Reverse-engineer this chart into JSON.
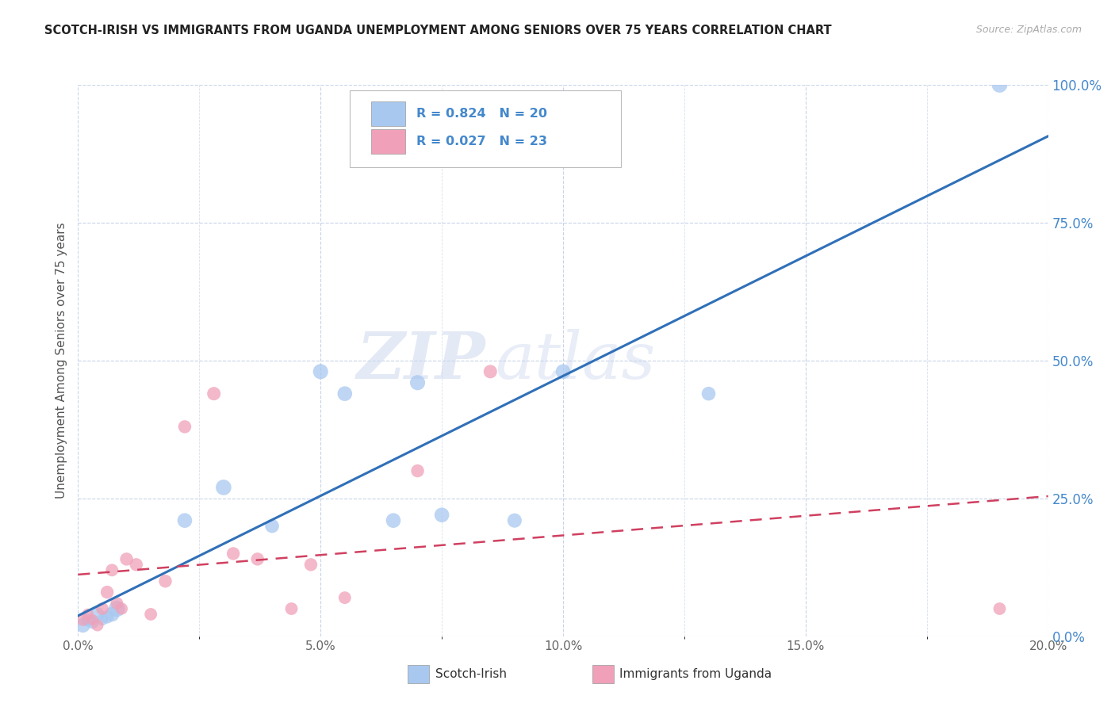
{
  "title": "SCOTCH-IRISH VS IMMIGRANTS FROM UGANDA UNEMPLOYMENT AMONG SENIORS OVER 75 YEARS CORRELATION CHART",
  "source": "Source: ZipAtlas.com",
  "ylabel": "Unemployment Among Seniors over 75 years",
  "xmin": 0.0,
  "xmax": 0.2,
  "ymin": 0.0,
  "ymax": 1.0,
  "xtick_labels": [
    "0.0%",
    "",
    "5.0%",
    "",
    "10.0%",
    "",
    "15.0%",
    "",
    "20.0%"
  ],
  "xtick_vals": [
    0.0,
    0.025,
    0.05,
    0.075,
    0.1,
    0.125,
    0.15,
    0.175,
    0.2
  ],
  "xtick_major_labels": [
    "0.0%",
    "5.0%",
    "10.0%",
    "15.0%",
    "20.0%"
  ],
  "xtick_major_vals": [
    0.0,
    0.05,
    0.1,
    0.15,
    0.2
  ],
  "ytick_labels": [
    "0.0%",
    "25.0%",
    "50.0%",
    "75.0%",
    "100.0%"
  ],
  "ytick_vals": [
    0.0,
    0.25,
    0.5,
    0.75,
    1.0
  ],
  "scotch_irish": {
    "label": "Scotch-Irish",
    "R": 0.824,
    "N": 20,
    "color": "#a8c8f0",
    "line_color": "#3070b8",
    "x": [
      0.001,
      0.002,
      0.003,
      0.004,
      0.005,
      0.006,
      0.007,
      0.008,
      0.022,
      0.03,
      0.04,
      0.05,
      0.055,
      0.065,
      0.07,
      0.075,
      0.09,
      0.1,
      0.13,
      0.19
    ],
    "y": [
      0.02,
      0.03,
      0.025,
      0.04,
      0.03,
      0.035,
      0.04,
      0.05,
      0.21,
      0.27,
      0.2,
      0.48,
      0.44,
      0.21,
      0.46,
      0.22,
      0.21,
      0.48,
      0.44,
      1.0
    ],
    "sizes": [
      180,
      150,
      130,
      160,
      110,
      140,
      180,
      220,
      180,
      200,
      160,
      190,
      180,
      180,
      190,
      180,
      170,
      180,
      160,
      200
    ]
  },
  "uganda": {
    "label": "Immigrants from Uganda",
    "R": 0.027,
    "N": 23,
    "color": "#f0a0b8",
    "line_color": "#d04060",
    "x": [
      0.001,
      0.002,
      0.003,
      0.004,
      0.005,
      0.006,
      0.007,
      0.008,
      0.009,
      0.01,
      0.012,
      0.015,
      0.018,
      0.022,
      0.028,
      0.032,
      0.037,
      0.044,
      0.048,
      0.055,
      0.07,
      0.085,
      0.19
    ],
    "y": [
      0.03,
      0.04,
      0.03,
      0.02,
      0.05,
      0.08,
      0.12,
      0.06,
      0.05,
      0.14,
      0.13,
      0.04,
      0.1,
      0.38,
      0.44,
      0.15,
      0.14,
      0.05,
      0.13,
      0.07,
      0.3,
      0.48,
      0.05
    ],
    "sizes": [
      130,
      110,
      100,
      120,
      130,
      140,
      130,
      130,
      120,
      140,
      140,
      130,
      140,
      140,
      150,
      140,
      140,
      130,
      140,
      130,
      140,
      150,
      130
    ]
  },
  "watermark_zip": "ZIP",
  "watermark_atlas": "atlas",
  "background_color": "#ffffff",
  "grid_color": "#c8d4e8",
  "title_color": "#222222",
  "axis_label_color": "#555555",
  "tick_color_right": "#4488cc",
  "legend_color": "#4488cc",
  "legend_N_color": "#e03060"
}
